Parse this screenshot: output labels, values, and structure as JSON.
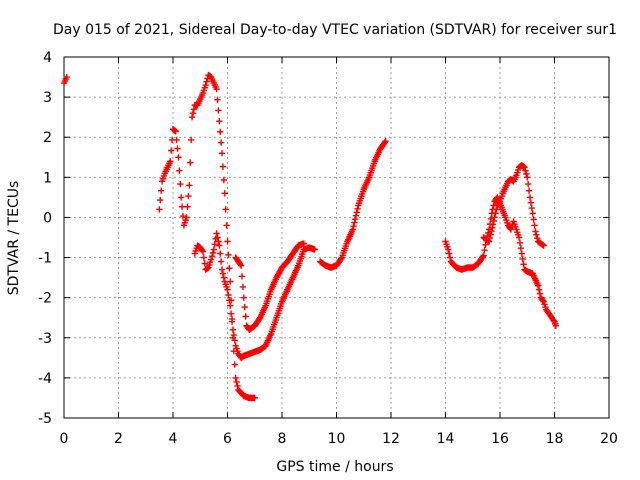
{
  "chart_data": {
    "type": "scatter",
    "title": "Day 015 of 2021, Sidereal Day-to-day VTEC variation (SDTVAR) for receiver sur1",
    "xlabel": "GPS time / hours",
    "ylabel": "SDTVAR / TECUs",
    "xlim": [
      0,
      20
    ],
    "ylim": [
      -5,
      4
    ],
    "xticks": [
      0,
      2,
      4,
      6,
      8,
      10,
      12,
      14,
      16,
      18,
      20
    ],
    "yticks": [
      -5,
      -4,
      -3,
      -2,
      -1,
      0,
      1,
      2,
      3,
      4
    ],
    "grid": true,
    "marker": "+",
    "color": "#ff0000",
    "series": [
      {
        "name": "sur1",
        "segments": [
          [
            [
              0.0,
              3.35
            ],
            [
              0.1,
              3.5
            ]
          ],
          [
            [
              3.5,
              0.2
            ],
            [
              3.6,
              0.9
            ],
            [
              3.7,
              1.1
            ],
            [
              3.8,
              1.25
            ],
            [
              3.9,
              1.4
            ],
            [
              4.0,
              2.2
            ],
            [
              4.1,
              2.15
            ],
            [
              4.2,
              1.5
            ],
            [
              4.3,
              0.5
            ],
            [
              4.4,
              -0.2
            ],
            [
              4.5,
              0.0
            ],
            [
              4.6,
              0.8
            ],
            [
              4.7,
              2.5
            ],
            [
              4.8,
              2.8
            ],
            [
              4.9,
              2.8
            ],
            [
              5.0,
              2.95
            ],
            [
              5.1,
              3.1
            ],
            [
              5.2,
              3.3
            ],
            [
              5.3,
              3.55
            ],
            [
              5.4,
              3.5
            ],
            [
              5.5,
              3.35
            ],
            [
              5.6,
              3.2
            ],
            [
              5.7,
              2.4
            ],
            [
              5.8,
              1.6
            ],
            [
              5.9,
              0.6
            ],
            [
              6.0,
              -0.6
            ],
            [
              6.1,
              -1.6
            ],
            [
              6.2,
              -3.0
            ],
            [
              6.3,
              -4.0
            ],
            [
              6.4,
              -4.3
            ],
            [
              6.6,
              -4.45
            ],
            [
              6.8,
              -4.5
            ],
            [
              7.0,
              -4.5
            ]
          ],
          [
            [
              4.8,
              -0.9
            ],
            [
              4.9,
              -0.7
            ],
            [
              5.0,
              -0.75
            ],
            [
              5.1,
              -0.85
            ],
            [
              5.2,
              -1.3
            ],
            [
              5.3,
              -1.25
            ],
            [
              5.4,
              -1.05
            ],
            [
              5.5,
              -0.8
            ],
            [
              5.6,
              -0.4
            ],
            [
              5.7,
              -0.7
            ],
            [
              5.8,
              -1.3
            ],
            [
              5.9,
              -1.6
            ],
            [
              6.0,
              -1.8
            ],
            [
              6.1,
              -2.2
            ],
            [
              6.2,
              -2.8
            ],
            [
              6.3,
              -3.2
            ],
            [
              6.4,
              -3.4
            ],
            [
              6.5,
              -3.5
            ],
            [
              6.6,
              -3.45
            ],
            [
              6.8,
              -3.4
            ],
            [
              7.0,
              -3.35
            ],
            [
              7.2,
              -3.3
            ],
            [
              7.4,
              -3.2
            ],
            [
              7.6,
              -2.9
            ],
            [
              7.8,
              -2.5
            ],
            [
              8.0,
              -2.1
            ],
            [
              8.2,
              -1.8
            ],
            [
              8.4,
              -1.5
            ],
            [
              8.6,
              -1.2
            ],
            [
              8.8,
              -0.8
            ],
            [
              9.0,
              -0.75
            ],
            [
              9.2,
              -0.8
            ]
          ],
          [
            [
              6.3,
              -1.0
            ],
            [
              6.5,
              -1.2
            ],
            [
              6.6,
              -2.0
            ],
            [
              6.7,
              -2.7
            ],
            [
              6.8,
              -2.8
            ],
            [
              7.0,
              -2.7
            ],
            [
              7.2,
              -2.5
            ],
            [
              7.4,
              -2.2
            ],
            [
              7.6,
              -1.8
            ],
            [
              7.8,
              -1.5
            ],
            [
              8.0,
              -1.25
            ],
            [
              8.2,
              -1.1
            ],
            [
              8.4,
              -0.9
            ],
            [
              8.6,
              -0.7
            ],
            [
              8.8,
              -0.65
            ]
          ],
          [
            [
              9.4,
              -1.1
            ],
            [
              9.6,
              -1.2
            ],
            [
              9.8,
              -1.25
            ],
            [
              10.0,
              -1.2
            ],
            [
              10.2,
              -1.0
            ],
            [
              10.4,
              -0.6
            ],
            [
              10.6,
              -0.3
            ],
            [
              10.8,
              0.3
            ],
            [
              11.0,
              0.7
            ],
            [
              11.2,
              1.0
            ],
            [
              11.4,
              1.4
            ],
            [
              11.6,
              1.7
            ],
            [
              11.8,
              1.9
            ]
          ],
          [
            [
              14.0,
              -0.6
            ],
            [
              14.1,
              -0.8
            ],
            [
              14.2,
              -1.1
            ],
            [
              14.4,
              -1.25
            ],
            [
              14.6,
              -1.3
            ],
            [
              14.8,
              -1.25
            ],
            [
              15.0,
              -1.25
            ],
            [
              15.2,
              -1.15
            ],
            [
              15.4,
              -0.95
            ],
            [
              15.5,
              -0.55
            ],
            [
              15.6,
              -0.3
            ],
            [
              15.7,
              0.1
            ],
            [
              15.8,
              0.4
            ],
            [
              15.9,
              0.5
            ],
            [
              16.0,
              0.35
            ],
            [
              16.2,
              0.0
            ],
            [
              16.3,
              -0.2
            ],
            [
              16.4,
              -0.3
            ],
            [
              16.5,
              -0.1
            ],
            [
              16.6,
              -0.3
            ],
            [
              16.7,
              -0.5
            ],
            [
              16.8,
              -0.9
            ],
            [
              16.9,
              -1.3
            ],
            [
              17.0,
              -1.35
            ],
            [
              17.2,
              -1.4
            ],
            [
              17.4,
              -1.7
            ],
            [
              17.5,
              -2.0
            ],
            [
              17.6,
              -2.1
            ],
            [
              17.7,
              -2.3
            ],
            [
              17.8,
              -2.4
            ],
            [
              17.9,
              -2.5
            ],
            [
              18.0,
              -2.6
            ],
            [
              18.05,
              -2.7
            ]
          ],
          [
            [
              15.4,
              -0.5
            ],
            [
              15.6,
              -0.6
            ],
            [
              15.8,
              0.0
            ],
            [
              15.9,
              0.3
            ],
            [
              16.0,
              0.4
            ],
            [
              16.1,
              0.6
            ],
            [
              16.2,
              0.75
            ],
            [
              16.3,
              0.9
            ],
            [
              16.4,
              0.95
            ],
            [
              16.5,
              0.9
            ],
            [
              16.6,
              1.05
            ],
            [
              16.7,
              1.25
            ],
            [
              16.8,
              1.3
            ],
            [
              16.9,
              1.25
            ],
            [
              17.0,
              1.0
            ],
            [
              17.1,
              0.5
            ],
            [
              17.2,
              0.1
            ],
            [
              17.3,
              -0.35
            ],
            [
              17.4,
              -0.6
            ],
            [
              17.5,
              -0.65
            ],
            [
              17.6,
              -0.7
            ]
          ]
        ]
      }
    ]
  }
}
